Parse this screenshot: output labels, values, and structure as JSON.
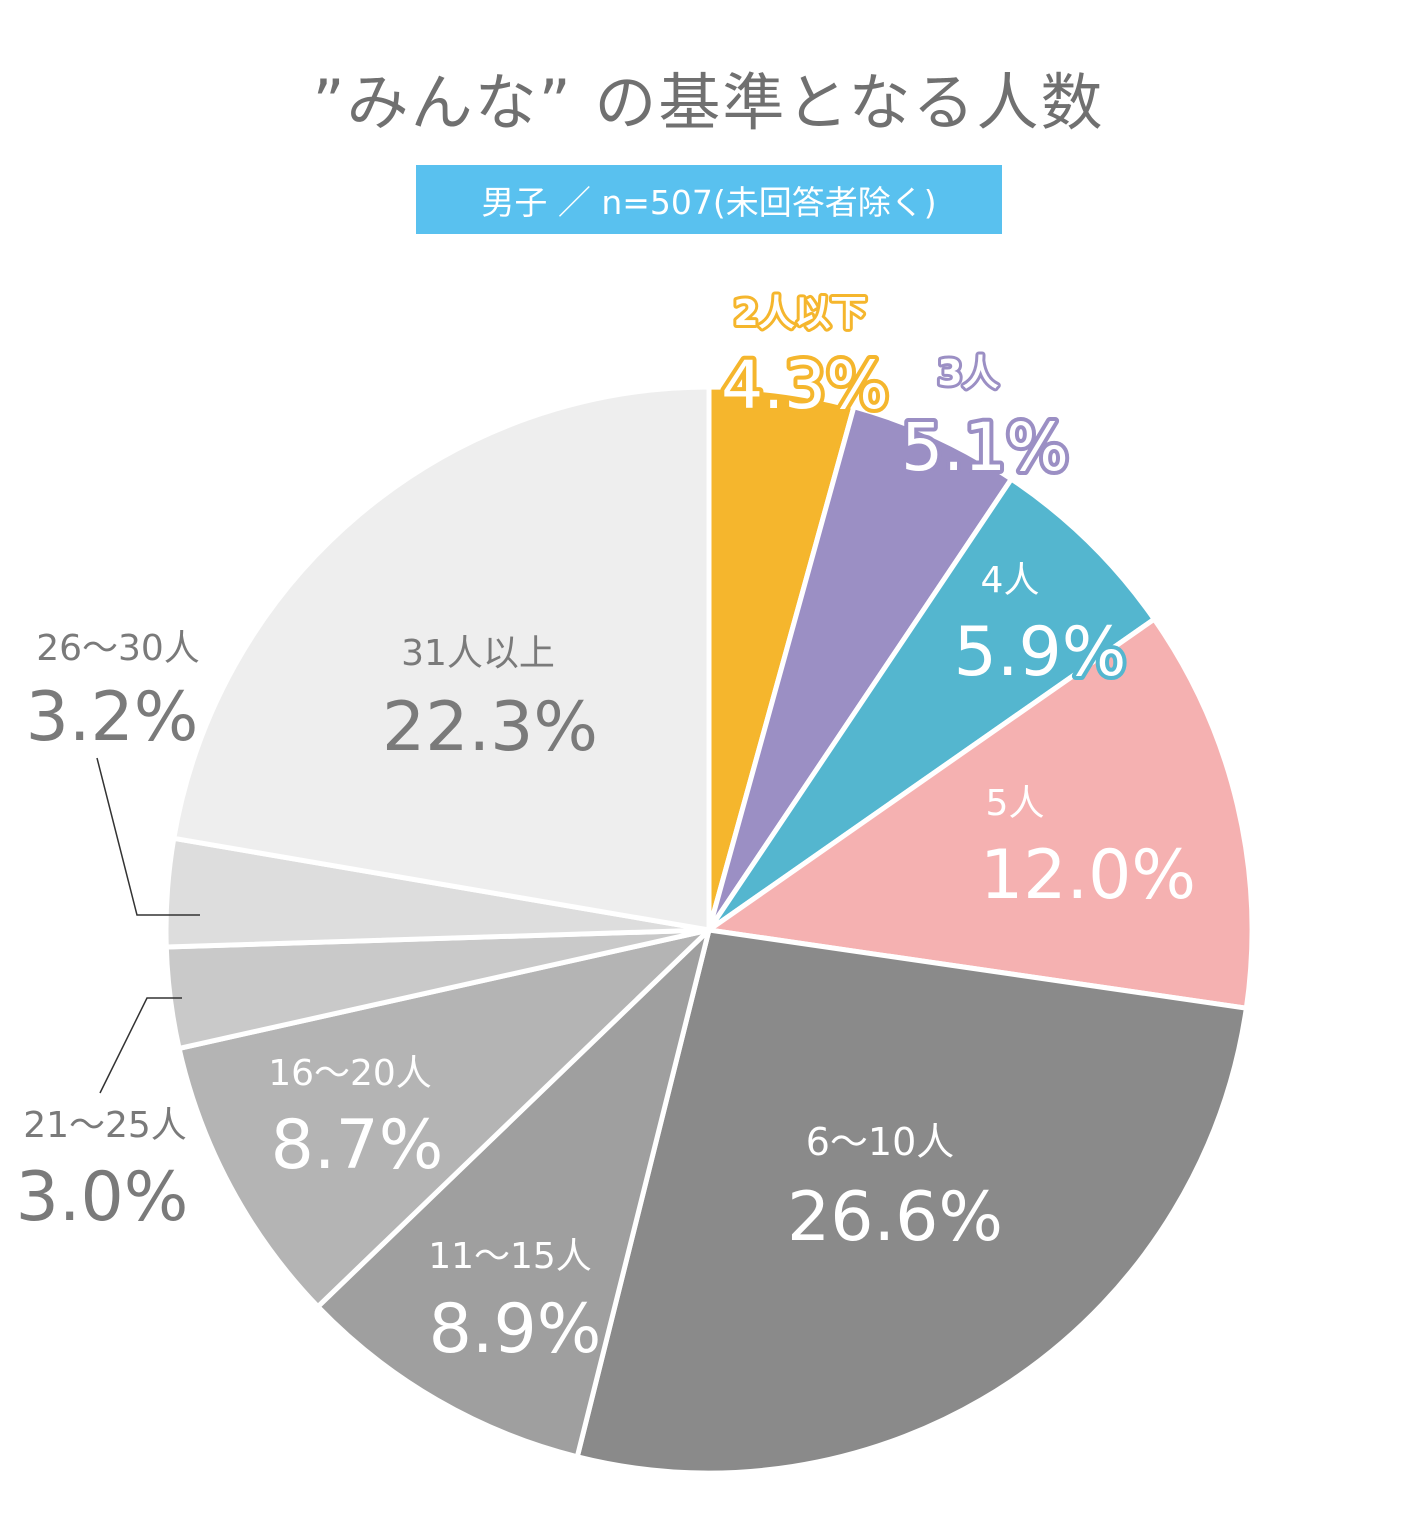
{
  "title": "”みんな” の基準となる人数",
  "subtitle": "男子 ／ n=507(未回答者除く)",
  "chart_data": {
    "type": "pie",
    "title": "”みんな” の基準となる人数",
    "subtitle": "男子 ／ n=507(未回答者除く)",
    "start": "12 o'clock, clockwise",
    "slices": [
      {
        "label": "2人以下",
        "value": 4.3,
        "value_label": "4.3%",
        "color": "#f5b62d",
        "label_color": "#f5b62d",
        "label_style": "outlined",
        "label_placement": "outside"
      },
      {
        "label": "3人",
        "value": 5.1,
        "value_label": "5.1%",
        "color": "#9b8fc4",
        "label_color": "#9b8fc4",
        "label_style": "outlined",
        "label_placement": "outside"
      },
      {
        "label": "4人",
        "value": 5.9,
        "value_label": "5.9%",
        "color": "#54b6cf",
        "label_color": "#ffffff",
        "label_style": "outlined",
        "label_placement": "inside"
      },
      {
        "label": "5人",
        "value": 12.0,
        "value_label": "12.0%",
        "color": "#f5b1b1",
        "label_color": "#ffffff",
        "label_placement": "inside"
      },
      {
        "label": "6～10人",
        "value": 26.6,
        "value_label": "26.6%",
        "color": "#8a8a8a",
        "label_color": "#ffffff",
        "label_placement": "inside"
      },
      {
        "label": "11～15人",
        "value": 8.9,
        "value_label": "8.9%",
        "color": "#9f9f9f",
        "label_color": "#ffffff",
        "label_placement": "inside"
      },
      {
        "label": "16～20人",
        "value": 8.7,
        "value_label": "8.7%",
        "color": "#b4b4b4",
        "label_color": "#ffffff",
        "label_placement": "inside"
      },
      {
        "label": "21～25人",
        "value": 3.0,
        "value_label": "3.0%",
        "color": "#c9c9c9",
        "label_color": "#7a7a7a",
        "label_placement": "outside-leader"
      },
      {
        "label": "26～30人",
        "value": 3.2,
        "value_label": "3.2%",
        "color": "#dddddd",
        "label_color": "#7a7a7a",
        "label_placement": "outside-leader"
      },
      {
        "label": "31人以上",
        "value": 22.3,
        "value_label": "22.3%",
        "color": "#eeeeee",
        "label_color": "#7a7a7a",
        "label_placement": "inside"
      }
    ]
  }
}
